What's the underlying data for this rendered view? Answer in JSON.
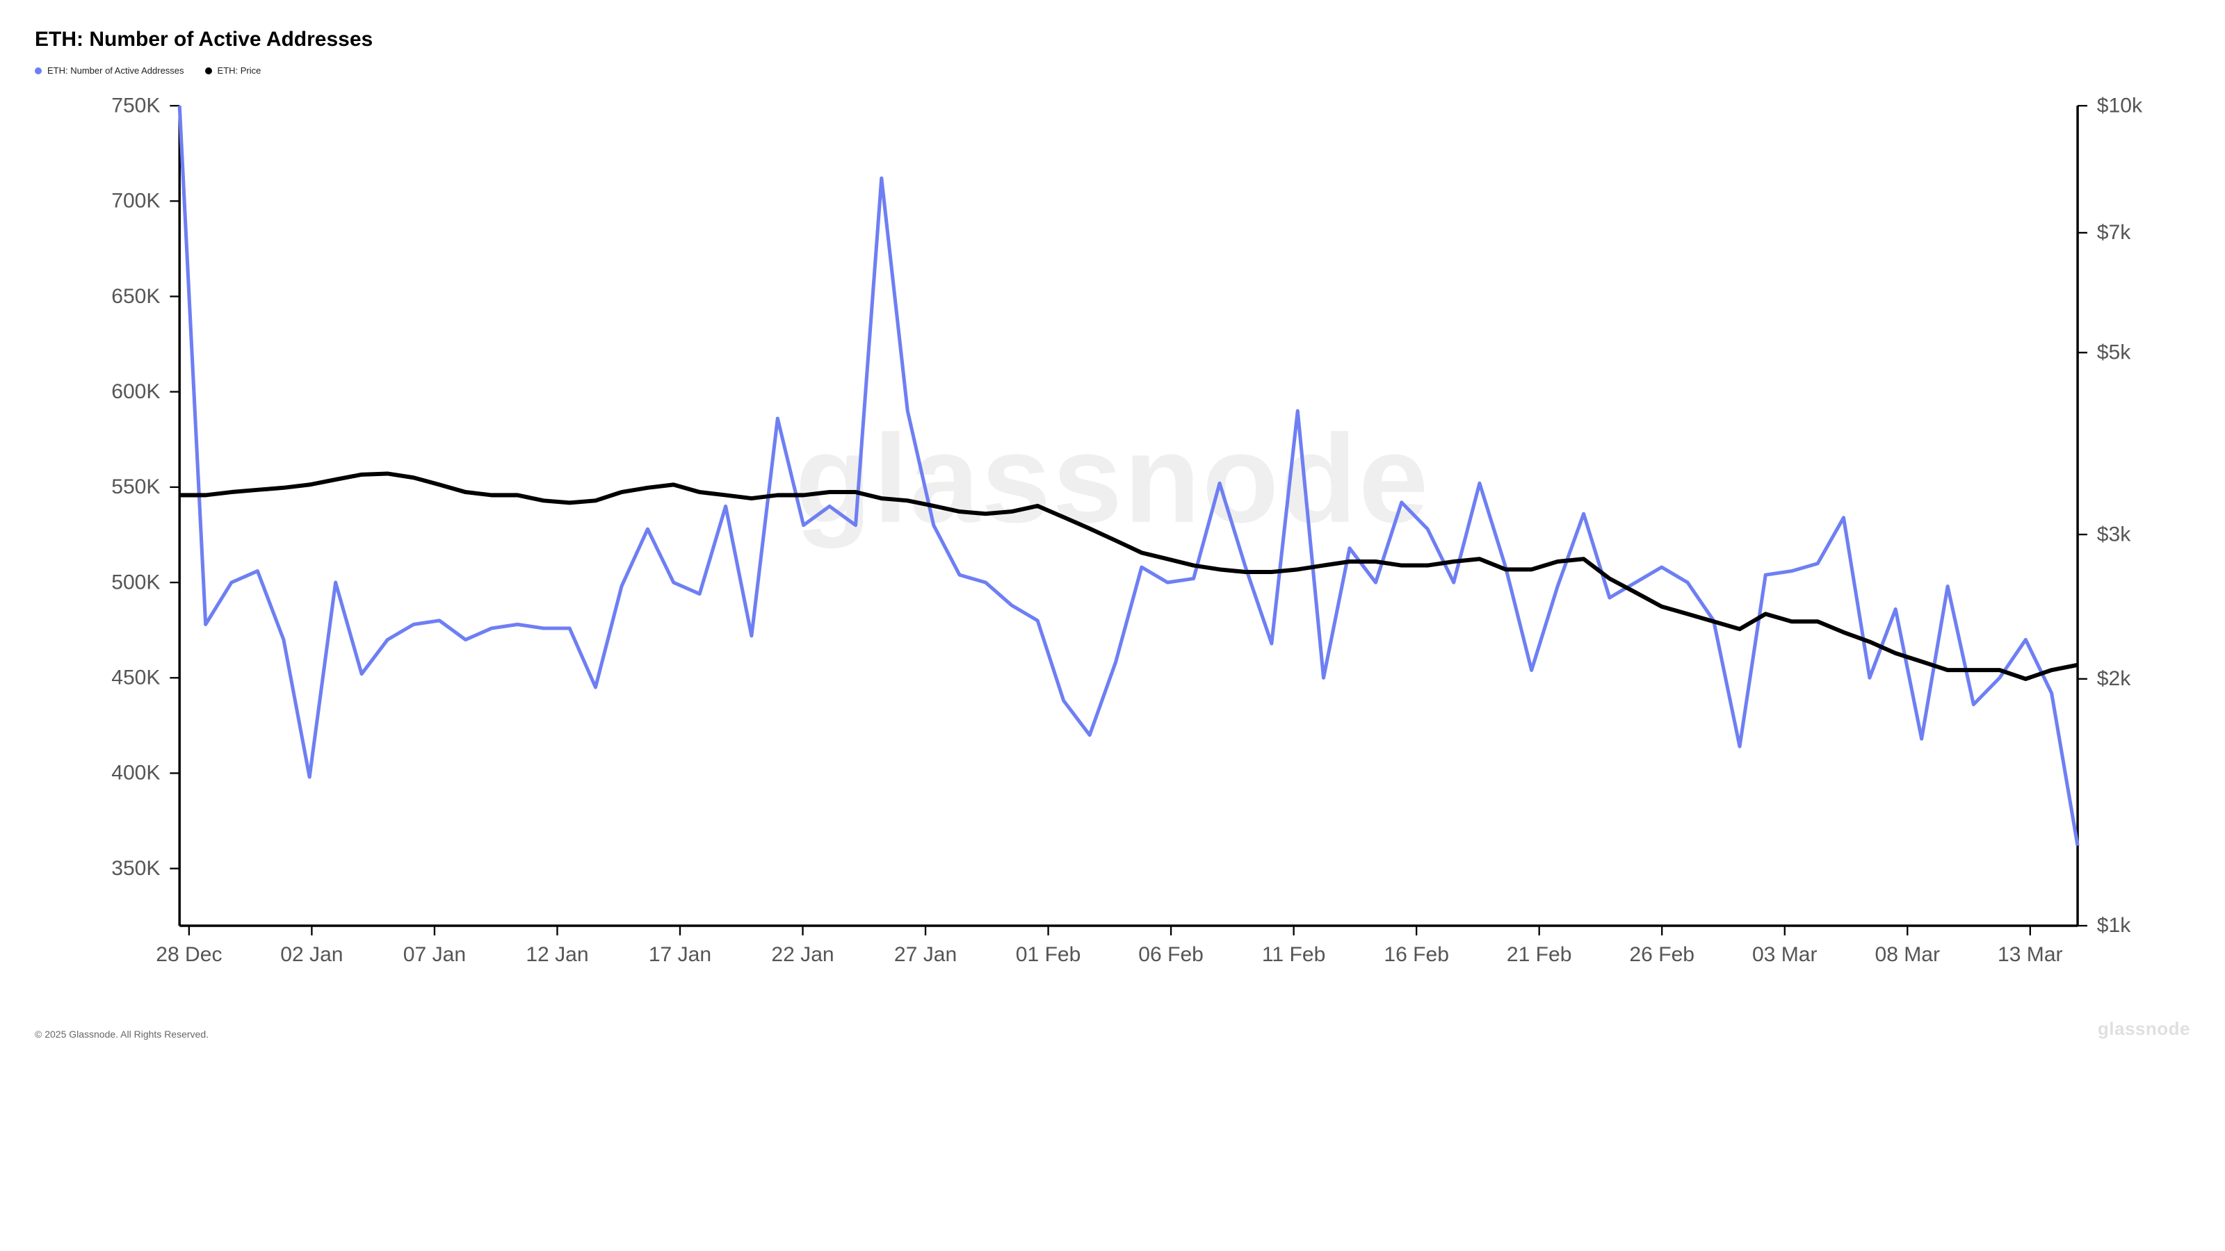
{
  "title": "ETH: Number of Active Addresses",
  "legend": {
    "series1": {
      "label": "ETH: Number of Active Addresses",
      "color": "#6e7ff3"
    },
    "series2": {
      "label": "ETH: Price",
      "color": "#000000"
    }
  },
  "chart": {
    "type": "line-dual-axis",
    "background_color": "#ffffff",
    "watermark_text": "glassnode",
    "x_labels": [
      "28 Dec",
      "02 Jan",
      "07 Jan",
      "12 Jan",
      "17 Jan",
      "22 Jan",
      "27 Jan",
      "01 Feb",
      "06 Feb",
      "11 Feb",
      "16 Feb",
      "21 Feb",
      "26 Feb",
      "03 Mar",
      "08 Mar",
      "13 Mar"
    ],
    "y_left": {
      "min": 320,
      "max": 750,
      "ticks": [
        350,
        400,
        450,
        500,
        550,
        600,
        650,
        700,
        750
      ],
      "tick_labels": [
        "350K",
        "400K",
        "450K",
        "500K",
        "550K",
        "600K",
        "650K",
        "700K",
        "750K"
      ],
      "scale": "linear"
    },
    "y_right": {
      "scale": "log",
      "ticks": [
        1000,
        2000,
        3000,
        5000,
        7000,
        10000
      ],
      "tick_labels": [
        "$1k",
        "$2k",
        "$3k",
        "$5k",
        "$7k",
        "$10k"
      ]
    },
    "series_addresses": {
      "color": "#6e7ff3",
      "line_width": 2.2,
      "values": [
        750,
        478,
        500,
        506,
        470,
        398,
        500,
        452,
        470,
        478,
        480,
        470,
        476,
        478,
        476,
        476,
        445,
        498,
        528,
        500,
        494,
        540,
        472,
        586,
        530,
        540,
        530,
        712,
        590,
        530,
        504,
        500,
        488,
        480,
        438,
        420,
        458,
        508,
        500,
        502,
        552,
        508,
        468,
        590,
        450,
        518,
        500,
        542,
        528,
        500,
        552,
        508,
        454,
        498,
        536,
        492,
        500,
        508,
        500,
        480,
        414,
        504,
        506,
        510,
        534,
        450,
        486,
        418,
        498,
        436,
        450,
        470,
        442,
        362
      ]
    },
    "series_price": {
      "color": "#000000",
      "line_width": 2.6,
      "values": [
        3350,
        3350,
        3380,
        3400,
        3420,
        3450,
        3500,
        3550,
        3560,
        3520,
        3450,
        3380,
        3350,
        3350,
        3300,
        3280,
        3300,
        3380,
        3420,
        3450,
        3380,
        3350,
        3320,
        3350,
        3350,
        3380,
        3380,
        3320,
        3300,
        3250,
        3200,
        3180,
        3200,
        3250,
        3150,
        3050,
        2950,
        2850,
        2800,
        2750,
        2720,
        2700,
        2700,
        2720,
        2750,
        2780,
        2780,
        2750,
        2750,
        2780,
        2800,
        2720,
        2720,
        2780,
        2800,
        2650,
        2550,
        2450,
        2400,
        2350,
        2300,
        2400,
        2350,
        2350,
        2280,
        2220,
        2150,
        2100,
        2050,
        2050,
        2050,
        2000,
        2050,
        2080
      ]
    },
    "axis_color": "#000000",
    "tick_font_size": 13
  },
  "footer": {
    "copyright": "© 2025 Glassnode. All Rights Reserved.",
    "brand": "glassnode"
  }
}
